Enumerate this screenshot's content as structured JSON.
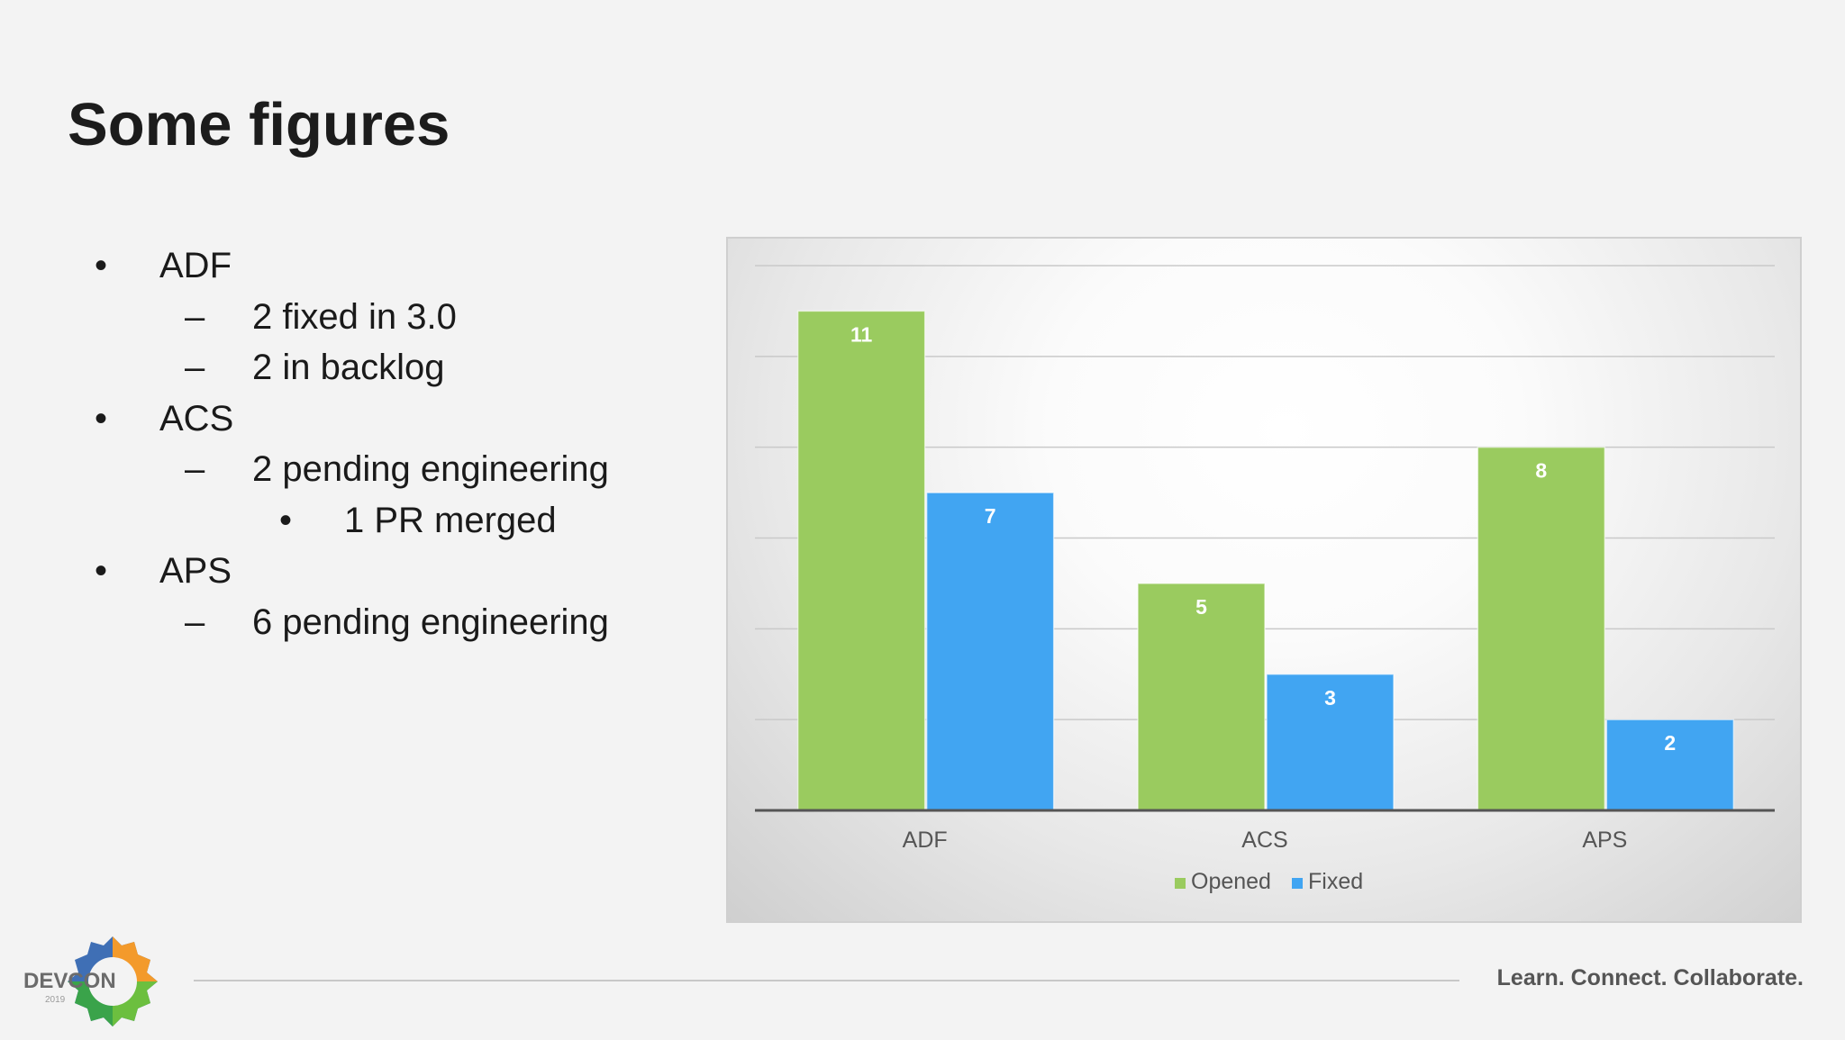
{
  "slide": {
    "title": "Some figures",
    "tagline": "Learn. Connect. Collaborate.",
    "logo_text": "DEVCON",
    "logo_year": "2019"
  },
  "bullets": [
    {
      "level": 1,
      "text": "ADF"
    },
    {
      "level": 2,
      "text": "2 fixed in 3.0"
    },
    {
      "level": 2,
      "text": "2 in backlog"
    },
    {
      "level": 1,
      "text": "ACS"
    },
    {
      "level": 2,
      "text": "2 pending engineering"
    },
    {
      "level": 3,
      "text": "1 PR merged"
    },
    {
      "level": 1,
      "text": "APS"
    },
    {
      "level": 2,
      "text": "6 pending engineering"
    }
  ],
  "colors": {
    "opened": "#9acb5f",
    "fixed": "#41a5f2",
    "axis": "#555555",
    "grid": "#c9c9c9",
    "label": "#555555"
  },
  "chart_data": {
    "type": "bar",
    "categories": [
      "ADF",
      "ACS",
      "APS"
    ],
    "series": [
      {
        "name": "Opened",
        "values": [
          11,
          5,
          8
        ]
      },
      {
        "name": "Fixed",
        "values": [
          7,
          3,
          2
        ]
      }
    ],
    "title": "",
    "xlabel": "",
    "ylabel": "",
    "ylim": [
      0,
      12
    ],
    "grid": true,
    "legend_position": "bottom",
    "data_labels": true
  }
}
